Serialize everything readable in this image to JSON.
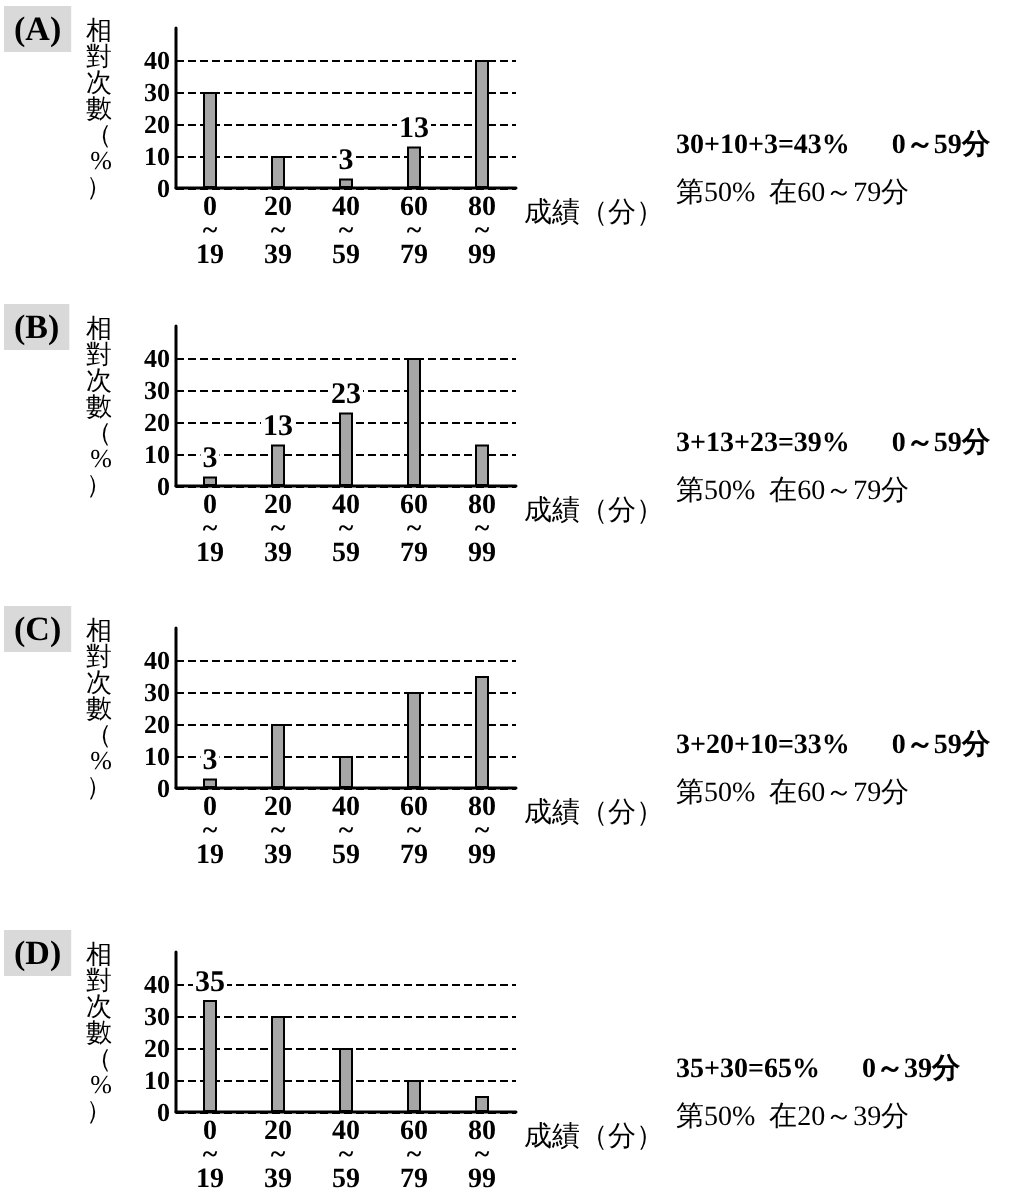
{
  "chart_data": [
    {
      "type": "bar",
      "title": "(A)",
      "ylabel": "相對次數（%）",
      "xlabel": "成績（分）",
      "categories": [
        "0~19",
        "20~39",
        "40~59",
        "60~79",
        "80~99"
      ],
      "values": [
        30,
        10,
        3,
        13,
        40
      ],
      "value_labels": [
        null,
        null,
        "3",
        "13",
        null
      ],
      "color": "#a6a6a6",
      "ylim": [
        0,
        50
      ],
      "yticks": [
        0,
        10,
        20,
        30,
        40
      ],
      "grid": "y",
      "annotations": [
        "30+10+3=43%      0～59分",
        "第50%  在60～79分"
      ]
    },
    {
      "type": "bar",
      "title": "(B)",
      "ylabel": "相對次數（%）",
      "xlabel": "成績（分）",
      "categories": [
        "0~19",
        "20~39",
        "40~59",
        "60~79",
        "80~99"
      ],
      "values": [
        3,
        13,
        23,
        40,
        13
      ],
      "value_labels": [
        "3",
        "13",
        "23",
        null,
        null
      ],
      "color": "#a6a6a6",
      "ylim": [
        0,
        50
      ],
      "yticks": [
        0,
        10,
        20,
        30,
        40
      ],
      "grid": "y",
      "annotations": [
        "3+13+23=39%      0～59分",
        "第50%  在60～79分"
      ]
    },
    {
      "type": "bar",
      "title": "(C)",
      "ylabel": "相對次數（%）",
      "xlabel": "成績（分）",
      "categories": [
        "0~19",
        "20~39",
        "40~59",
        "60~79",
        "80~99"
      ],
      "values": [
        3,
        20,
        10,
        30,
        35
      ],
      "value_labels": [
        "3",
        null,
        null,
        null,
        null
      ],
      "color": "#a6a6a6",
      "ylim": [
        0,
        50
      ],
      "yticks": [
        0,
        10,
        20,
        30,
        40
      ],
      "grid": "y",
      "annotations": [
        "3+20+10=33%      0～59分",
        "第50%  在60～79分"
      ]
    },
    {
      "type": "bar",
      "title": "(D)",
      "ylabel": "相對次數（%）",
      "xlabel": "成績（分）",
      "categories": [
        "0~19",
        "20~39",
        "40~59",
        "60~79",
        "80~99"
      ],
      "values": [
        35,
        30,
        20,
        10,
        5
      ],
      "value_labels": [
        "35",
        null,
        null,
        null,
        null
      ],
      "color": "#a6a6a6",
      "ylim": [
        0,
        50
      ],
      "yticks": [
        0,
        10,
        20,
        30,
        40
      ],
      "grid": "y",
      "annotations": [
        "35+30=65%      0～39分",
        "第50%  在20～39分"
      ]
    }
  ]
}
